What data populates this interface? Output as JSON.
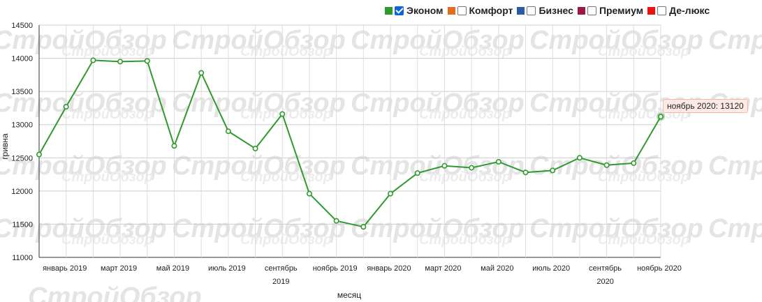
{
  "legend": [
    {
      "label": "Эконом",
      "color": "#2e9a2e",
      "checked": true
    },
    {
      "label": "Комфорт",
      "color": "#e07020",
      "checked": false
    },
    {
      "label": "Бизнес",
      "color": "#2a5caa",
      "checked": false
    },
    {
      "label": "Премиум",
      "color": "#a01a40",
      "checked": false
    },
    {
      "label": "Де-люкс",
      "color": "#ee1111",
      "checked": false
    }
  ],
  "watermark": "СтройОбзор",
  "tooltip": {
    "text": "ноябрь 2020: 13120"
  },
  "chart_data": {
    "type": "line",
    "xlabel": "месяц",
    "ylabel": "гривна",
    "ylim": [
      11000,
      14500
    ],
    "yticks": [
      11000,
      11500,
      12000,
      12500,
      13000,
      13500,
      14000,
      14500
    ],
    "grid": true,
    "x": [
      "декабрь 2018",
      "январь 2019",
      "февраль 2019",
      "март 2019",
      "апрель 2019",
      "май 2019",
      "июнь 2019",
      "июль 2019",
      "август 2019",
      "сентябрь 2019",
      "октябрь 2019",
      "ноябрь 2019",
      "декабрь 2019",
      "январь 2020",
      "февраль 2020",
      "март 2020",
      "апрель 2020",
      "май 2020",
      "июнь 2020",
      "июль 2020",
      "август 2020",
      "сентябрь 2020",
      "октябрь 2020",
      "ноябрь 2020"
    ],
    "xtick_labels": [
      {
        "index": 1,
        "label": "январь 2019"
      },
      {
        "index": 3,
        "label": "март 2019"
      },
      {
        "index": 5,
        "label": "май 2019"
      },
      {
        "index": 7,
        "label": "июль 2019"
      },
      {
        "index": 9,
        "label": "сентябрь"
      },
      {
        "index": 11,
        "label": "ноябрь 2019"
      },
      {
        "index": 13,
        "label": "январь 2020"
      },
      {
        "index": 15,
        "label": "март 2020"
      },
      {
        "index": 17,
        "label": "май 2020"
      },
      {
        "index": 19,
        "label": "июль 2020"
      },
      {
        "index": 21,
        "label": "сентябрь"
      },
      {
        "index": 23,
        "label": "ноябрь 2020"
      }
    ],
    "xtick_sublabels": [
      {
        "index": 9,
        "label": "2019"
      },
      {
        "index": 21,
        "label": "2020"
      }
    ],
    "series": [
      {
        "name": "Эконом",
        "color": "#2e9a2e",
        "values": [
          12550,
          13270,
          13970,
          13950,
          13960,
          12680,
          13780,
          12900,
          12640,
          13160,
          11960,
          11550,
          11460,
          11960,
          12270,
          12380,
          12350,
          12440,
          12280,
          12310,
          12500,
          12390,
          12420,
          13120
        ]
      }
    ],
    "highlight_index": 23
  }
}
